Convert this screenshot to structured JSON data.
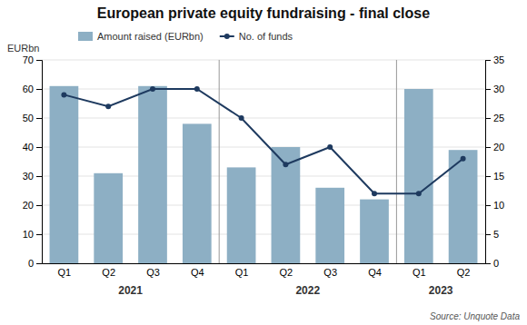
{
  "chart_data": {
    "type": "bar",
    "title": "European private equity fundraising - final close",
    "ylabel": "EURbn",
    "categories": [
      "Q1",
      "Q2",
      "Q3",
      "Q4",
      "Q1",
      "Q2",
      "Q3",
      "Q4",
      "Q1",
      "Q2"
    ],
    "series": [
      {
        "name": "Amount raised (EURbn)",
        "type": "bar",
        "color": "#8dafc4",
        "values": [
          61,
          31,
          61,
          48,
          33,
          40,
          26,
          22,
          60,
          39
        ]
      },
      {
        "name": "No. of funds",
        "type": "line",
        "color": "#1e3a5f",
        "marker": "circle",
        "axis": "y2",
        "values": [
          29,
          27,
          30,
          30,
          25,
          17,
          20,
          12,
          12,
          18
        ]
      }
    ],
    "ylim": [
      0,
      70
    ],
    "yticks": [
      0,
      10,
      20,
      30,
      40,
      50,
      60,
      70
    ],
    "y2lim": [
      0,
      35
    ],
    "y2ticks": [
      0,
      5,
      10,
      15,
      20,
      25,
      30,
      35
    ],
    "grid": true,
    "legend": "upper left",
    "annotations": [
      {
        "text": "2021",
        "x": 1.5
      },
      {
        "text": "2022",
        "x": 5.5
      },
      {
        "text": "2023",
        "x": 8.5
      },
      {
        "type": "vline",
        "x": 3.5
      },
      {
        "type": "vline",
        "x": 7.5
      }
    ],
    "source": "Source: Unquote Data"
  }
}
